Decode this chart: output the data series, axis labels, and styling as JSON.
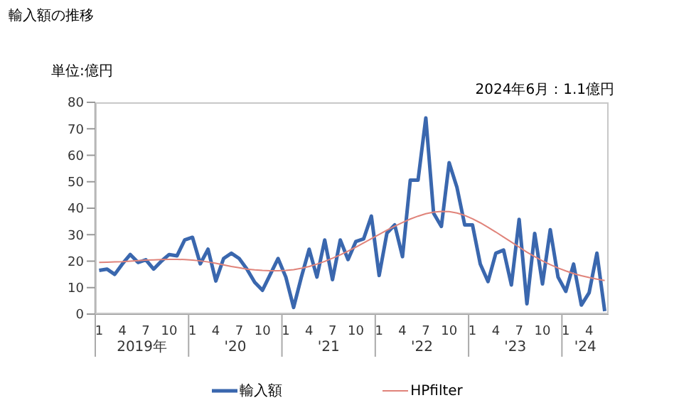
{
  "chart_data": {
    "type": "line",
    "title": "輸入額の推移",
    "ylabel": "単位:億円",
    "annotations": [
      "2024年6月：1.1億円",
      "2019年",
      "'20",
      "'21",
      "'22",
      "'23",
      "'24"
    ],
    "categories": [
      "1",
      null,
      null,
      "4",
      null,
      null,
      "7",
      null,
      null,
      "10",
      null,
      null,
      "1",
      null,
      null,
      "4",
      null,
      null,
      "7",
      null,
      null,
      "10",
      null,
      null,
      "1",
      null,
      null,
      "4",
      null,
      null,
      "7",
      null,
      null,
      "10",
      null,
      null,
      "1",
      null,
      null,
      "4",
      null,
      null,
      "7",
      null,
      null,
      "10",
      null,
      null,
      "1",
      null,
      null,
      "4",
      null,
      null,
      "7",
      null,
      null,
      "10",
      null,
      null,
      "1",
      null,
      null,
      "4",
      null,
      null
    ],
    "series": [
      {
        "name": "輸入額",
        "color": "#3a67ae",
        "values": [
          16.5,
          17,
          15,
          19,
          22.5,
          19.5,
          20.5,
          17,
          20,
          22.5,
          22,
          28,
          29,
          19,
          24.5,
          12.5,
          21,
          23,
          21,
          17,
          12,
          9,
          15,
          21,
          14,
          2.5,
          14,
          24.5,
          14,
          28,
          13,
          28,
          20.6,
          27.4,
          28.4,
          37,
          14.6,
          30.6,
          33.7,
          21.7,
          50.6,
          50.6,
          74.1,
          38.1,
          33.1,
          57.2,
          47.9,
          33.7,
          33.7,
          18.9,
          12.3,
          23,
          24.2,
          11,
          35.8,
          3.9,
          30.5,
          11.4,
          31.9,
          14,
          8.6,
          18.9,
          3.4,
          8.1,
          23,
          1.1
        ]
      },
      {
        "name": "HPfilter",
        "color": "#e0837a",
        "values": [
          19.5,
          19.6,
          19.7,
          19.8,
          20,
          20.2,
          20.4,
          20.5,
          20.6,
          20.7,
          20.7,
          20.6,
          20.4,
          20.1,
          19.7,
          19.2,
          18.6,
          18,
          17.5,
          17,
          16.7,
          16.5,
          16.4,
          16.4,
          16.5,
          16.8,
          17.3,
          18,
          18.9,
          19.9,
          21.1,
          22.4,
          23.8,
          25.3,
          26.9,
          28.5,
          30.1,
          31.7,
          33.2,
          34.6,
          35.9,
          37,
          37.9,
          38.5,
          38.8,
          38.7,
          38.2,
          37.3,
          36,
          34.5,
          32.8,
          31,
          29.1,
          27.2,
          25.3,
          23.4,
          21.7,
          20.1,
          18.7,
          17.4,
          16.3,
          15.3,
          14.5,
          13.8,
          13.2,
          12.7
        ]
      }
    ],
    "ylim": [
      0,
      80
    ],
    "yticks": [
      0,
      10,
      20,
      30,
      40,
      50,
      60,
      70,
      80
    ],
    "legend": "bottom",
    "marker": "none",
    "line_style": "solid"
  }
}
